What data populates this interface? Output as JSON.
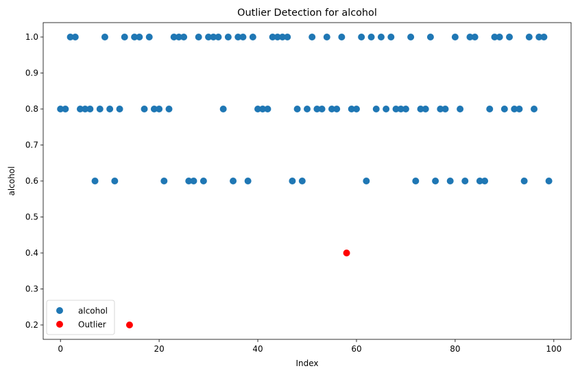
{
  "chart_data": {
    "type": "scatter",
    "title": "Outlier Detection for alcohol",
    "xlabel": "Index",
    "ylabel": "alcohol",
    "xlim": [
      -3.5,
      103.5
    ],
    "ylim": [
      0.16,
      1.04
    ],
    "x_ticks": [
      0,
      20,
      40,
      60,
      80,
      100
    ],
    "y_ticks": [
      0.2,
      0.3,
      0.4,
      0.5,
      0.6,
      0.7,
      0.8,
      0.9,
      1.0
    ],
    "x_tick_labels": [
      "0",
      "20",
      "40",
      "60",
      "80",
      "100"
    ],
    "y_tick_labels": [
      "0.2",
      "0.3",
      "0.4",
      "0.5",
      "0.6",
      "0.7",
      "0.8",
      "0.9",
      "1.0"
    ],
    "grid": false,
    "legend_position": "bottom-left",
    "series": [
      {
        "name": "alcohol",
        "color": "#1f77b4",
        "x": [
          0,
          1,
          2,
          3,
          4,
          5,
          6,
          7,
          8,
          9,
          10,
          11,
          12,
          13,
          15,
          16,
          17,
          18,
          19,
          20,
          21,
          22,
          23,
          24,
          25,
          26,
          27,
          28,
          29,
          30,
          31,
          32,
          33,
          34,
          35,
          36,
          37,
          38,
          39,
          40,
          41,
          42,
          43,
          44,
          45,
          46,
          47,
          48,
          49,
          50,
          51,
          52,
          53,
          54,
          55,
          56,
          57,
          59,
          60,
          61,
          62,
          63,
          64,
          65,
          66,
          67,
          68,
          69,
          70,
          71,
          72,
          73,
          74,
          75,
          76,
          77,
          78,
          79,
          80,
          81,
          82,
          83,
          84,
          85,
          86,
          87,
          88,
          89,
          90,
          91,
          92,
          93,
          94,
          95,
          96,
          97,
          98,
          99
        ],
        "y": [
          0.8,
          0.8,
          1.0,
          1.0,
          0.8,
          0.8,
          0.8,
          0.6,
          0.8,
          1.0,
          0.8,
          0.6,
          0.8,
          1.0,
          1.0,
          1.0,
          0.8,
          1.0,
          0.8,
          0.8,
          0.6,
          0.8,
          1.0,
          1.0,
          1.0,
          0.6,
          0.6,
          1.0,
          0.6,
          1.0,
          1.0,
          1.0,
          0.8,
          1.0,
          0.6,
          1.0,
          1.0,
          0.6,
          1.0,
          0.8,
          0.8,
          0.8,
          1.0,
          1.0,
          1.0,
          1.0,
          0.6,
          0.8,
          0.6,
          0.8,
          1.0,
          0.8,
          0.8,
          1.0,
          0.8,
          0.8,
          1.0,
          0.8,
          0.8,
          1.0,
          0.6,
          1.0,
          0.8,
          1.0,
          0.8,
          1.0,
          0.8,
          0.8,
          0.8,
          1.0,
          0.6,
          0.8,
          0.8,
          1.0,
          0.6,
          0.8,
          0.8,
          0.6,
          1.0,
          0.8,
          0.6,
          1.0,
          1.0,
          0.6,
          0.6,
          0.8,
          1.0,
          1.0,
          0.8,
          1.0,
          0.8,
          0.8,
          0.6,
          1.0,
          0.8,
          1.0,
          1.0,
          0.6
        ]
      },
      {
        "name": "Outlier",
        "color": "#ff0000",
        "x": [
          14,
          58
        ],
        "y": [
          0.2,
          0.4
        ]
      }
    ]
  }
}
